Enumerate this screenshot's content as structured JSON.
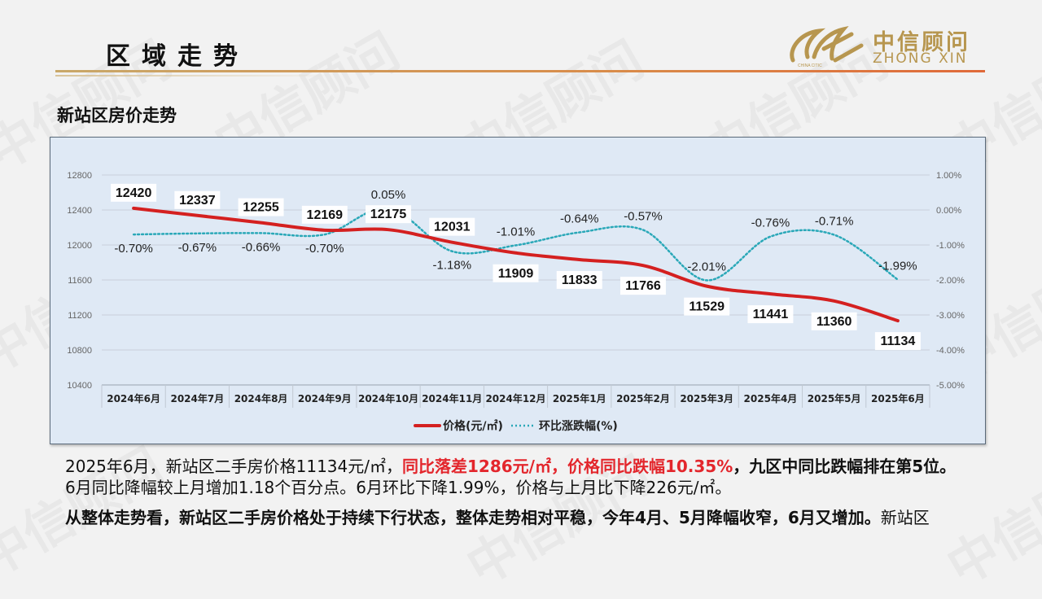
{
  "header": {
    "title": "区域走势"
  },
  "logo": {
    "cn": "中信顾问",
    "en": "ZHONG XIN"
  },
  "watermark_text": "中信顾问",
  "section_title": "新站区房价走势",
  "chart_data": {
    "type": "line",
    "categories": [
      "2024年6月",
      "2024年7月",
      "2024年8月",
      "2024年9月",
      "2024年10月",
      "2024年11月",
      "2024年12月",
      "2025年1月",
      "2025年2月",
      "2025年3月",
      "2025年4月",
      "2025年5月",
      "2025年6月"
    ],
    "series": [
      {
        "name": "价格(元/㎡)",
        "axis": "left",
        "color": "#d42020",
        "style": "solid",
        "values": [
          12420,
          12337,
          12255,
          12169,
          12175,
          12031,
          11909,
          11833,
          11766,
          11529,
          11441,
          11360,
          11134
        ],
        "labels": [
          "12420",
          "12337",
          "12255",
          "12169",
          "12175",
          "12031",
          "11909",
          "11833",
          "11766",
          "11529",
          "11441",
          "11360",
          "11134"
        ]
      },
      {
        "name": "环比涨跌幅(%)",
        "axis": "right",
        "color": "#2aa8b8",
        "style": "dotted",
        "values": [
          -0.7,
          -0.67,
          -0.66,
          -0.7,
          0.05,
          -1.18,
          -1.01,
          -0.64,
          -0.57,
          -2.01,
          -0.76,
          -0.71,
          -1.99
        ],
        "labels": [
          "-0.70%",
          "-0.67%",
          "-0.66%",
          "-0.70%",
          "0.05%",
          "-1.18%",
          "-1.01%",
          "-0.64%",
          "-0.57%",
          "-2.01%",
          "-0.76%",
          "-0.71%",
          "-1.99%"
        ]
      }
    ],
    "left_axis": {
      "ylim": [
        10400,
        12800
      ],
      "ticks": [
        10400,
        10800,
        11200,
        11600,
        12000,
        12400,
        12800
      ],
      "tick_labels": [
        "10400",
        "10800",
        "11200",
        "11600",
        "12000",
        "12400",
        "12800"
      ]
    },
    "right_axis": {
      "ylim": [
        -5.0,
        1.0
      ],
      "ticks": [
        -5,
        -4,
        -3,
        -2,
        -1,
        0,
        1
      ],
      "tick_labels": [
        "-5.00%",
        "-4.00%",
        "-3.00%",
        "-2.00%",
        "-1.00%",
        "0.00%",
        "1.00%"
      ]
    },
    "grid": true,
    "legend": "bottom"
  },
  "paragraph1": {
    "line1_a": "2025年6月，新站区二手房价格11134元/㎡，",
    "line1_b": "同比落差1286元/㎡，价格同比跌幅10.35%",
    "line1_c": "，九区中同比跌幅排在第5位。",
    "line2": "6月同比降幅较上月增加1.18个百分点。6月环比下降1.99%，价格与上月比下降226元/㎡。"
  },
  "paragraph2": {
    "line1_a": "从整体走势看，新站区二手房价格处于持续下行状态，整体走势相对平稳，今年4月、5月降幅收窄，6月又增加。",
    "line1_b": "新站区"
  }
}
